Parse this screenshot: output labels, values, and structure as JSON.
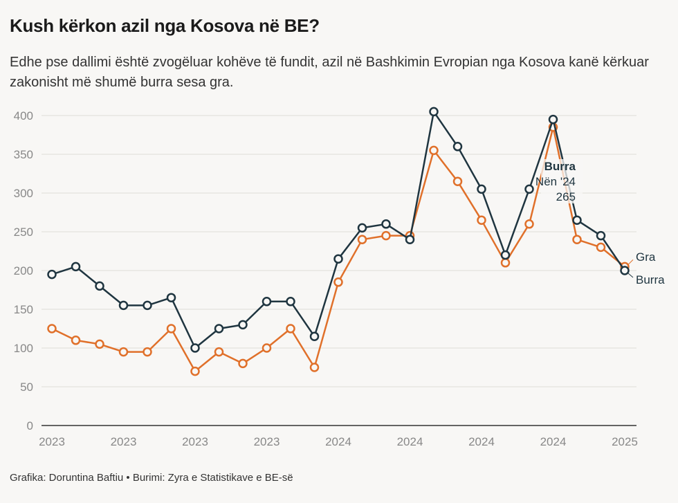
{
  "title": "Kush kërkon azil nga Kosova në BE?",
  "subtitle": "Edhe pse dallimi është zvogëluar kohëve të fundit, azil në Bashkimin Evropian nga Kosova kanë kërkuar zakonisht më shumë burra sesa gra.",
  "footer": "Grafika: Doruntina Baftiu • Burimi: Zyra e Statistikave e BE-së",
  "colors": {
    "burra": "#1f3540",
    "gra": "#e0702a"
  },
  "chart_data": {
    "type": "line",
    "title": "Kush kërkon azil nga Kosova në BE?",
    "ylim": [
      0,
      400
    ],
    "yticks": [
      "0",
      "50",
      "100",
      "150",
      "200",
      "250",
      "300",
      "350",
      "400"
    ],
    "xtick_labels": [
      "2023",
      "2023",
      "2023",
      "2023",
      "2024",
      "2024",
      "2024",
      "2024",
      "2025"
    ],
    "xtick_every": 3,
    "grid": true,
    "series": [
      {
        "name": "Gra",
        "values": [
          125,
          110,
          105,
          95,
          95,
          125,
          70,
          95,
          80,
          100,
          125,
          75,
          185,
          240,
          245,
          245,
          355,
          315,
          265,
          210,
          260,
          385,
          240,
          230,
          205
        ]
      },
      {
        "name": "Burra",
        "values": [
          195,
          205,
          180,
          155,
          155,
          165,
          100,
          125,
          130,
          160,
          160,
          115,
          215,
          255,
          260,
          240,
          405,
          360,
          305,
          220,
          305,
          395,
          265,
          245,
          200
        ]
      }
    ],
    "tooltip": {
      "series": "Burra",
      "period": "Nën '24",
      "value": "265",
      "index": 22
    }
  }
}
